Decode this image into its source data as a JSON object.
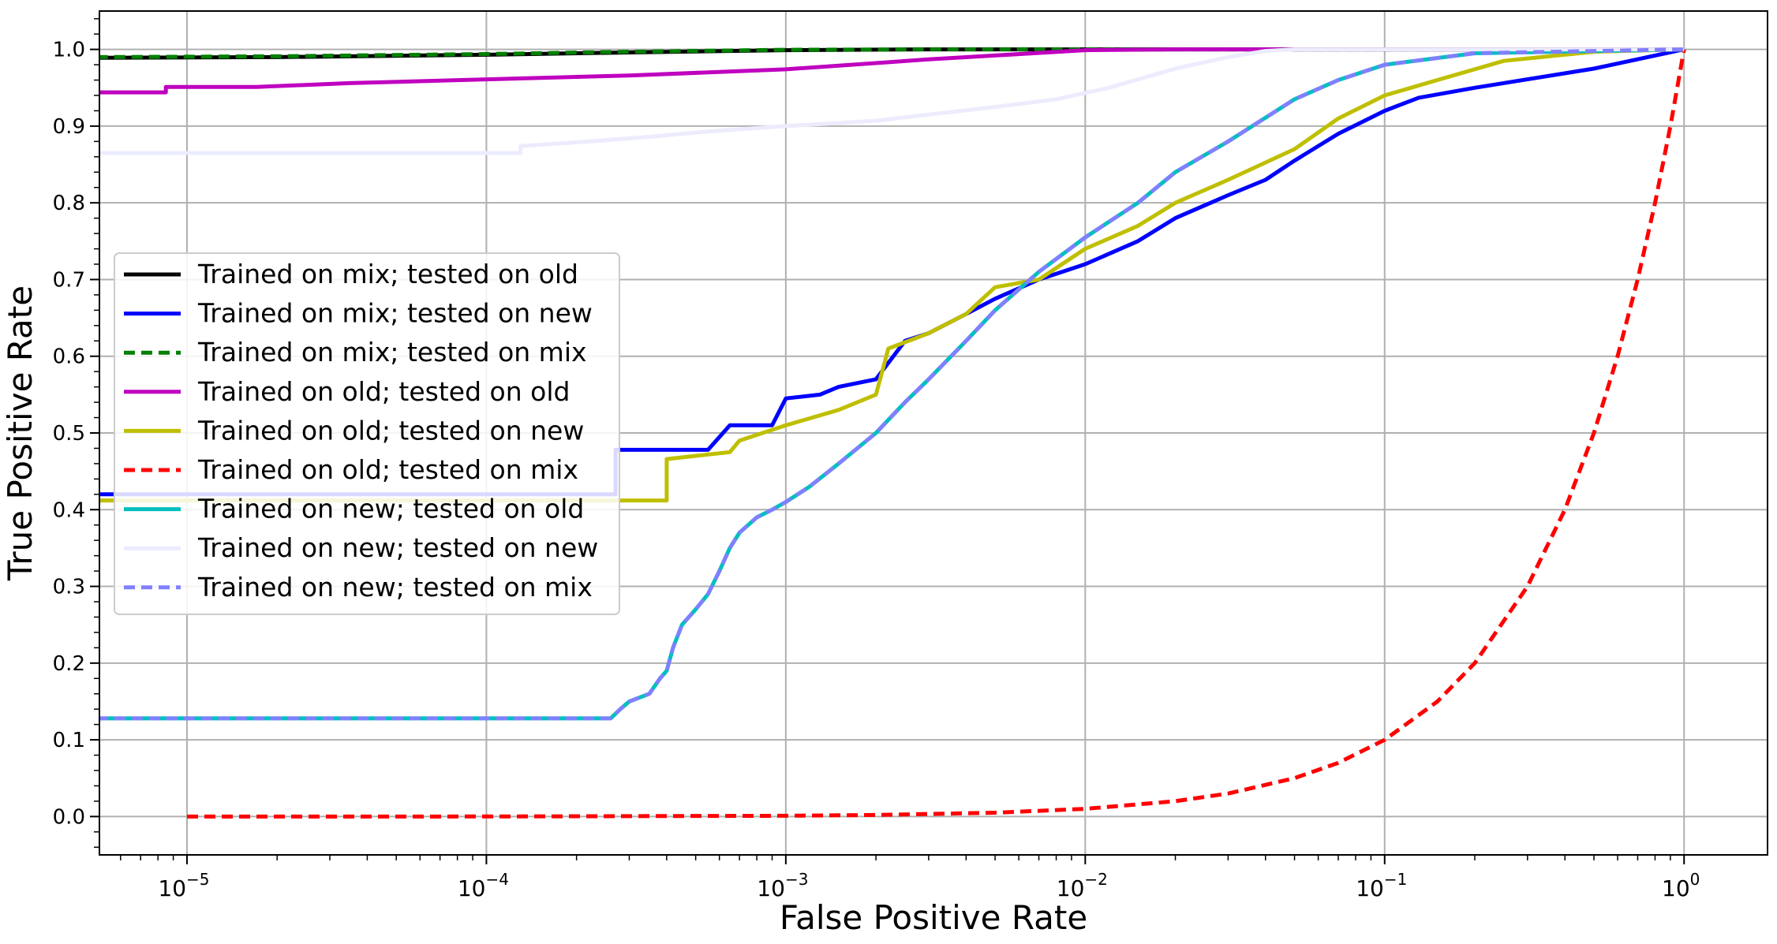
{
  "chart_data": {
    "type": "line",
    "xlabel": "False Positive Rate",
    "ylabel": "True Positive Rate",
    "xscale": "log",
    "xlim": [
      5.1e-06,
      1.9
    ],
    "ylim": [
      -0.05,
      1.05
    ],
    "grid": true,
    "legend_position": "center-left",
    "x_ticks": [
      {
        "value": 1e-05,
        "base": "10",
        "exp": "−5"
      },
      {
        "value": 0.0001,
        "base": "10",
        "exp": "−4"
      },
      {
        "value": 0.001,
        "base": "10",
        "exp": "−3"
      },
      {
        "value": 0.01,
        "base": "10",
        "exp": "−2"
      },
      {
        "value": 0.1,
        "base": "10",
        "exp": "−1"
      },
      {
        "value": 1,
        "base": "10",
        "exp": "0"
      }
    ],
    "y_ticks": [
      {
        "value": 0.0,
        "label": "0.0"
      },
      {
        "value": 0.1,
        "label": "0.1"
      },
      {
        "value": 0.2,
        "label": "0.2"
      },
      {
        "value": 0.3,
        "label": "0.3"
      },
      {
        "value": 0.4,
        "label": "0.4"
      },
      {
        "value": 0.5,
        "label": "0.5"
      },
      {
        "value": 0.6,
        "label": "0.6"
      },
      {
        "value": 0.7,
        "label": "0.7"
      },
      {
        "value": 0.8,
        "label": "0.8"
      },
      {
        "value": 0.9,
        "label": "0.9"
      },
      {
        "value": 1.0,
        "label": "1.0"
      }
    ],
    "series": [
      {
        "name": "Trained on mix; tested on old",
        "color": "#000000",
        "dash": false,
        "points": [
          [
            5e-06,
            0.989
          ],
          [
            2e-05,
            0.99
          ],
          [
            0.0001,
            0.993
          ],
          [
            0.0003,
            0.996
          ],
          [
            0.001,
            0.999
          ],
          [
            0.003,
            1.0
          ],
          [
            1,
            1.0
          ]
        ]
      },
      {
        "name": "Trained on mix; tested on new",
        "color": "#0000ff",
        "dash": false,
        "points": [
          [
            5e-06,
            0.42
          ],
          [
            0.00027,
            0.42
          ],
          [
            0.00027,
            0.478
          ],
          [
            0.00055,
            0.478
          ],
          [
            0.00065,
            0.51
          ],
          [
            0.0009,
            0.51
          ],
          [
            0.001,
            0.545
          ],
          [
            0.0013,
            0.55
          ],
          [
            0.0015,
            0.56
          ],
          [
            0.002,
            0.57
          ],
          [
            0.0025,
            0.62
          ],
          [
            0.003,
            0.63
          ],
          [
            0.004,
            0.655
          ],
          [
            0.005,
            0.675
          ],
          [
            0.007,
            0.7
          ],
          [
            0.01,
            0.72
          ],
          [
            0.015,
            0.75
          ],
          [
            0.02,
            0.78
          ],
          [
            0.03,
            0.81
          ],
          [
            0.04,
            0.83
          ],
          [
            0.05,
            0.855
          ],
          [
            0.07,
            0.89
          ],
          [
            0.1,
            0.92
          ],
          [
            0.13,
            0.937
          ],
          [
            0.2,
            0.95
          ],
          [
            0.5,
            0.975
          ],
          [
            1,
            1.0
          ]
        ]
      },
      {
        "name": "Trained on mix; tested on mix",
        "color": "#008000",
        "dash": true,
        "points": [
          [
            5e-06,
            0.99
          ],
          [
            2e-05,
            0.991
          ],
          [
            0.0001,
            0.994
          ],
          [
            0.0003,
            0.997
          ],
          [
            0.001,
            0.9995
          ],
          [
            0.003,
            1.0
          ],
          [
            1,
            1.0
          ]
        ]
      },
      {
        "name": "Trained on old; tested on old",
        "color": "#bf00bf",
        "dash": false,
        "points": [
          [
            5e-06,
            0.944
          ],
          [
            8.5e-06,
            0.944
          ],
          [
            8.5e-06,
            0.951
          ],
          [
            1.7e-05,
            0.951
          ],
          [
            3.5e-05,
            0.956
          ],
          [
            0.0001,
            0.961
          ],
          [
            0.0003,
            0.966
          ],
          [
            0.001,
            0.974
          ],
          [
            0.003,
            0.987
          ],
          [
            0.01,
            0.999
          ],
          [
            0.02,
            1.0
          ],
          [
            1,
            1.0
          ]
        ]
      },
      {
        "name": "Trained on old; tested on new",
        "color": "#bfbf00",
        "dash": false,
        "points": [
          [
            5e-06,
            0.412
          ],
          [
            0.0004,
            0.412
          ],
          [
            0.0004,
            0.466
          ],
          [
            0.00065,
            0.475
          ],
          [
            0.0007,
            0.49
          ],
          [
            0.001,
            0.51
          ],
          [
            0.0015,
            0.53
          ],
          [
            0.002,
            0.55
          ],
          [
            0.0022,
            0.61
          ],
          [
            0.003,
            0.63
          ],
          [
            0.004,
            0.655
          ],
          [
            0.005,
            0.69
          ],
          [
            0.007,
            0.7
          ],
          [
            0.01,
            0.74
          ],
          [
            0.015,
            0.77
          ],
          [
            0.02,
            0.8
          ],
          [
            0.03,
            0.83
          ],
          [
            0.05,
            0.87
          ],
          [
            0.07,
            0.91
          ],
          [
            0.1,
            0.94
          ],
          [
            0.15,
            0.96
          ],
          [
            0.25,
            0.985
          ],
          [
            0.5,
            0.997
          ],
          [
            1,
            1.0
          ]
        ]
      },
      {
        "name": "Trained on old; tested on mix",
        "color": "#ff0000",
        "dash": true,
        "points": [
          [
            1e-05,
            1e-05
          ],
          [
            0.0001,
            0.0001
          ],
          [
            0.001,
            0.001
          ],
          [
            0.002,
            0.002
          ],
          [
            0.005,
            0.005
          ],
          [
            0.01,
            0.01
          ],
          [
            0.02,
            0.02
          ],
          [
            0.03,
            0.03
          ],
          [
            0.05,
            0.05
          ],
          [
            0.07,
            0.07
          ],
          [
            0.1,
            0.1
          ],
          [
            0.15,
            0.15
          ],
          [
            0.2,
            0.2
          ],
          [
            0.3,
            0.3
          ],
          [
            0.4,
            0.4
          ],
          [
            0.5,
            0.5
          ],
          [
            0.6,
            0.6
          ],
          [
            0.7,
            0.7
          ],
          [
            0.8,
            0.8
          ],
          [
            0.9,
            0.9
          ],
          [
            1,
            1.0
          ]
        ]
      },
      {
        "name": "Trained on new; tested on old",
        "color": "#00bfbf",
        "dash": false,
        "points": [
          [
            5e-06,
            0.128
          ],
          [
            0.00026,
            0.128
          ],
          [
            0.00028,
            0.14
          ],
          [
            0.0003,
            0.15
          ],
          [
            0.00035,
            0.16
          ],
          [
            0.00038,
            0.18
          ],
          [
            0.0004,
            0.19
          ],
          [
            0.00042,
            0.22
          ],
          [
            0.00045,
            0.25
          ],
          [
            0.0005,
            0.27
          ],
          [
            0.00055,
            0.29
          ],
          [
            0.0006,
            0.32
          ],
          [
            0.00065,
            0.35
          ],
          [
            0.0007,
            0.37
          ],
          [
            0.0008,
            0.39
          ],
          [
            0.0009,
            0.4
          ],
          [
            0.001,
            0.41
          ],
          [
            0.0012,
            0.43
          ],
          [
            0.0015,
            0.46
          ],
          [
            0.002,
            0.5
          ],
          [
            0.0025,
            0.54
          ],
          [
            0.003,
            0.57
          ],
          [
            0.004,
            0.62
          ],
          [
            0.005,
            0.66
          ],
          [
            0.007,
            0.71
          ],
          [
            0.01,
            0.755
          ],
          [
            0.015,
            0.8
          ],
          [
            0.02,
            0.84
          ],
          [
            0.03,
            0.88
          ],
          [
            0.05,
            0.935
          ],
          [
            0.07,
            0.96
          ],
          [
            0.1,
            0.98
          ],
          [
            0.2,
            0.995
          ],
          [
            1,
            1.0
          ]
        ]
      },
      {
        "name": "Trained on new; tested on new",
        "color": "#ececfe",
        "dash": false,
        "points": [
          [
            5e-06,
            0.865
          ],
          [
            0.00013,
            0.865
          ],
          [
            0.00013,
            0.874
          ],
          [
            0.00022,
            0.88
          ],
          [
            0.00035,
            0.886
          ],
          [
            0.00055,
            0.893
          ],
          [
            0.001,
            0.9
          ],
          [
            0.002,
            0.907
          ],
          [
            0.003,
            0.915
          ],
          [
            0.005,
            0.925
          ],
          [
            0.008,
            0.935
          ],
          [
            0.012,
            0.95
          ],
          [
            0.02,
            0.975
          ],
          [
            0.03,
            0.99
          ],
          [
            0.04,
            0.998
          ],
          [
            0.05,
            1.0
          ],
          [
            1,
            1.0
          ]
        ]
      },
      {
        "name": "Trained on new; tested on mix",
        "color": "#8080ff",
        "dash": true,
        "points": [
          [
            5e-06,
            0.128
          ],
          [
            0.00026,
            0.128
          ],
          [
            0.00028,
            0.14
          ],
          [
            0.0003,
            0.15
          ],
          [
            0.00035,
            0.16
          ],
          [
            0.00038,
            0.18
          ],
          [
            0.0004,
            0.19
          ],
          [
            0.00042,
            0.22
          ],
          [
            0.00045,
            0.25
          ],
          [
            0.0005,
            0.27
          ],
          [
            0.00055,
            0.29
          ],
          [
            0.0006,
            0.32
          ],
          [
            0.00065,
            0.35
          ],
          [
            0.0007,
            0.37
          ],
          [
            0.0008,
            0.39
          ],
          [
            0.0009,
            0.4
          ],
          [
            0.001,
            0.41
          ],
          [
            0.0012,
            0.43
          ],
          [
            0.0015,
            0.46
          ],
          [
            0.002,
            0.5
          ],
          [
            0.0025,
            0.54
          ],
          [
            0.003,
            0.57
          ],
          [
            0.004,
            0.62
          ],
          [
            0.005,
            0.66
          ],
          [
            0.007,
            0.71
          ],
          [
            0.01,
            0.755
          ],
          [
            0.015,
            0.8
          ],
          [
            0.02,
            0.84
          ],
          [
            0.03,
            0.88
          ],
          [
            0.05,
            0.935
          ],
          [
            0.07,
            0.96
          ],
          [
            0.1,
            0.98
          ],
          [
            0.2,
            0.995
          ],
          [
            1,
            1.0
          ]
        ]
      }
    ]
  }
}
